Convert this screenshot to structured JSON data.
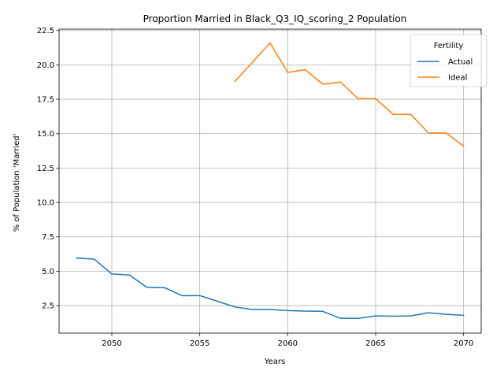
{
  "chart_data": {
    "type": "line",
    "title": "Proportion Married in Black_Q3_IQ_scoring_2 Population",
    "xlabel": "Years",
    "ylabel": "% of Population 'Married'",
    "xlim": [
      2047,
      2071
    ],
    "ylim": [
      0.5,
      22.6
    ],
    "x_ticks": [
      2050,
      2055,
      2060,
      2065,
      2070
    ],
    "y_ticks": [
      2.5,
      5.0,
      7.5,
      10.0,
      12.5,
      15.0,
      17.5,
      20.0,
      22.5
    ],
    "x_tick_labels": [
      "2050",
      "2055",
      "2060",
      "2065",
      "2070"
    ],
    "y_tick_labels": [
      "2.5",
      "5.0",
      "7.5",
      "10.0",
      "12.5",
      "15.0",
      "17.5",
      "20.0",
      "22.5"
    ],
    "grid": true,
    "legend": {
      "title": "Fertility",
      "placement": "top-right"
    },
    "series": [
      {
        "name": "Actual",
        "color": "#1f77b4",
        "x": [
          2048,
          2049,
          2050,
          2051,
          2052,
          2053,
          2054,
          2055,
          2056,
          2057,
          2058,
          2059,
          2060,
          2061,
          2062,
          2063,
          2064,
          2065,
          2066,
          2067,
          2068,
          2069,
          2070
        ],
        "y": [
          5.95,
          5.88,
          4.8,
          4.72,
          3.82,
          3.8,
          3.22,
          3.23,
          2.82,
          2.4,
          2.22,
          2.22,
          2.14,
          2.1,
          2.08,
          1.58,
          1.57,
          1.75,
          1.73,
          1.75,
          1.98,
          1.87,
          1.8
        ]
      },
      {
        "name": "Ideal",
        "color": "#ff7f0e",
        "x": [
          2057,
          2058,
          2059,
          2060,
          2061,
          2062,
          2063,
          2064,
          2065,
          2066,
          2067,
          2068,
          2069,
          2070
        ],
        "y": [
          18.8,
          20.2,
          21.6,
          19.45,
          19.65,
          18.6,
          18.75,
          17.55,
          17.55,
          16.4,
          16.4,
          15.05,
          15.05,
          14.1
        ]
      }
    ]
  }
}
